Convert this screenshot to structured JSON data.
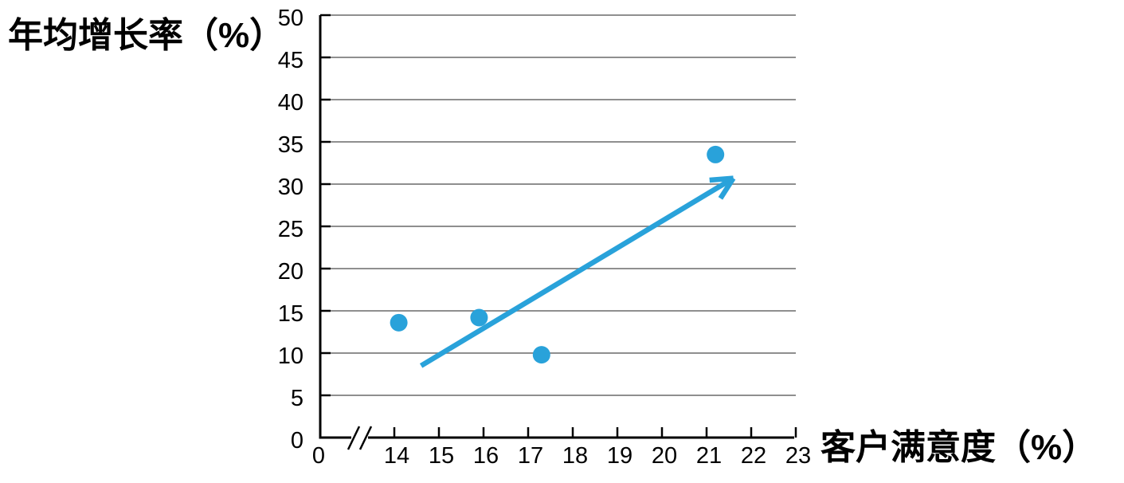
{
  "chart_data": {
    "type": "scatter",
    "title": "",
    "xlabel": "客户满意度（%）",
    "ylabel": "年均增长率（%）",
    "x_origin_label": "0",
    "x_ticks": [
      14,
      15,
      16,
      17,
      18,
      19,
      20,
      21,
      22,
      23
    ],
    "y_ticks": [
      0,
      5,
      10,
      15,
      20,
      25,
      30,
      35,
      40,
      45,
      50
    ],
    "xlim_segment": [
      14,
      23
    ],
    "ylim": [
      0,
      50
    ],
    "axis_break_on_x": true,
    "grid": "horizontal",
    "legend": "none",
    "points": [
      {
        "x": 14.1,
        "y": 13.6
      },
      {
        "x": 15.9,
        "y": 14.2
      },
      {
        "x": 17.3,
        "y": 9.8
      },
      {
        "x": 21.2,
        "y": 33.5
      }
    ],
    "trend_arrow": {
      "from": {
        "x": 14.6,
        "y": 8.5
      },
      "to": {
        "x": 21.6,
        "y": 30.7
      }
    },
    "colors": {
      "point": "#29A2DA",
      "arrow": "#29A2DA",
      "gridline": "#7F7F7F",
      "axis": "#000000",
      "text": "#000000"
    }
  }
}
